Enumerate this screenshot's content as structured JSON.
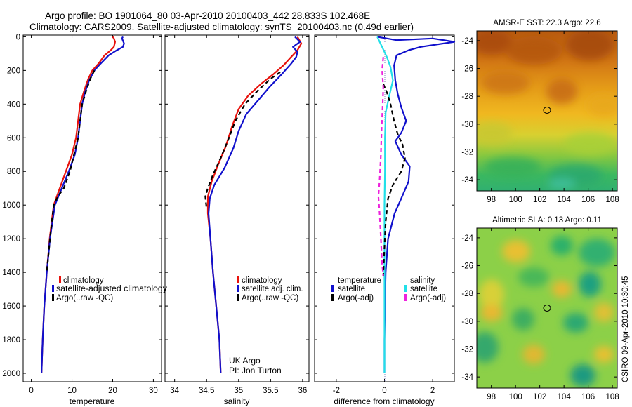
{
  "header": {
    "line1": "Argo profile: BO 1901064_80 03-Apr-2010 20100403_442 28.833S 102.468E",
    "line2": "Climatology: CARS2009. Satellite-adjusted climatology: synTS_20100403.nc (0.49d earlier)"
  },
  "side_stamp": "CSIRO 09-Apr-2010 10:30:45",
  "panels": {
    "temperature": {
      "xlabel": "temperature",
      "xticks": [
        "0",
        "10",
        "20",
        "30"
      ],
      "legend": [
        "climatology",
        "satellite-adjusted climatology",
        "Argo(..raw -QC)"
      ]
    },
    "salinity": {
      "xlabel": "salinity",
      "xticks": [
        "34",
        "34.5",
        "35",
        "35.5",
        "36"
      ],
      "legend": [
        "climatology",
        "satellite adj. clim.",
        "Argo(..raw -QC)"
      ],
      "note1": "UK Argo",
      "note2": "PI: Jon Turton"
    },
    "difference": {
      "xlabel": "difference from climatology",
      "xticks": [
        "-2",
        "0",
        "2"
      ],
      "legend_left_title": "temperature",
      "legend_right_title": "salinity",
      "legend_left": [
        "satellite",
        "Argo(-adj)"
      ],
      "legend_right": [
        "satellite",
        "Argo(-adj)"
      ]
    },
    "sst_map": {
      "title": "AMSR-E SST: 22.3 Argo: 22.6",
      "xticks": [
        "98",
        "100",
        "102",
        "104",
        "106",
        "108"
      ],
      "yticks": [
        "-24",
        "-26",
        "-28",
        "-30",
        "-32",
        "-34"
      ]
    },
    "sla_map": {
      "title": "Altimetric SLA: 0.13 Argo: 0.11",
      "xticks": [
        "98",
        "100",
        "102",
        "104",
        "106",
        "108"
      ],
      "yticks": [
        "-24",
        "-26",
        "-28",
        "-30",
        "-32",
        "-34"
      ]
    }
  },
  "yticks_depth": [
    "0",
    "200",
    "400",
    "600",
    "800",
    "1000",
    "1200",
    "1400",
    "1600",
    "1800",
    "2000"
  ],
  "colors": {
    "climatology": "#e8120c",
    "satellite_adj": "#1010cc",
    "argo": "#000000",
    "temp_satellite": "#1010cc",
    "sal_satellite": "#22e0e8",
    "sal_argo": "#ee22dd"
  },
  "chart_data": [
    {
      "type": "line",
      "panel": "temperature",
      "xlabel": "temperature",
      "xlim": [
        -2,
        32
      ],
      "ylim": [
        2050,
        -10
      ],
      "series": [
        {
          "name": "climatology",
          "color": "#e8120c",
          "dash": "none",
          "points": [
            [
              20,
              0
            ],
            [
              20.3,
              10
            ],
            [
              20.6,
              30
            ],
            [
              20.3,
              60
            ],
            [
              19.5,
              80
            ],
            [
              18,
              110
            ],
            [
              16.5,
              160
            ],
            [
              15,
              200
            ],
            [
              14,
              250
            ],
            [
              13,
              320
            ],
            [
              12,
              400
            ],
            [
              11.5,
              500
            ],
            [
              11,
              600
            ],
            [
              10,
              700
            ],
            [
              8.5,
              800
            ],
            [
              7,
              900
            ],
            [
              5.5,
              1000
            ],
            [
              4.5,
              1200
            ],
            [
              3.8,
              1400
            ],
            [
              3.2,
              1600
            ],
            [
              2.8,
              1800
            ],
            [
              2.5,
              2000
            ]
          ]
        },
        {
          "name": "satellite-adjusted climatology",
          "color": "#1010cc",
          "dash": "none",
          "points": [
            [
              22.5,
              0
            ],
            [
              22.3,
              10
            ],
            [
              22.8,
              40
            ],
            [
              22.5,
              60
            ],
            [
              21,
              80
            ],
            [
              19,
              110
            ],
            [
              17,
              160
            ],
            [
              15.5,
              200
            ],
            [
              14.2,
              260
            ],
            [
              13.2,
              330
            ],
            [
              12.5,
              400
            ],
            [
              12,
              500
            ],
            [
              11.5,
              600
            ],
            [
              10.7,
              700
            ],
            [
              9.2,
              800
            ],
            [
              7.5,
              900
            ],
            [
              5.8,
              1000
            ],
            [
              4.6,
              1200
            ],
            [
              3.8,
              1400
            ],
            [
              3.2,
              1600
            ],
            [
              2.8,
              1800
            ],
            [
              2.5,
              2000
            ]
          ]
        },
        {
          "name": "Argo(..raw -QC)",
          "color": "#000000",
          "dash": "6,4",
          "points": [
            [
              15.5,
              200
            ],
            [
              14.5,
              250
            ],
            [
              13.5,
              320
            ],
            [
              12.5,
              400
            ],
            [
              12,
              500
            ],
            [
              11.5,
              600
            ],
            [
              10.5,
              700
            ],
            [
              9.5,
              800
            ],
            [
              8,
              900
            ],
            [
              6.5,
              950
            ],
            [
              5.5,
              1000
            ],
            [
              4.6,
              1200
            ],
            [
              3.8,
              1400
            ]
          ]
        }
      ]
    },
    {
      "type": "line",
      "panel": "salinity",
      "xlabel": "salinity",
      "xlim": [
        33.85,
        36.1
      ],
      "ylim": [
        2050,
        -10
      ],
      "series": [
        {
          "name": "climatology",
          "color": "#e8120c",
          "dash": "none",
          "points": [
            [
              35.92,
              0
            ],
            [
              35.95,
              20
            ],
            [
              35.98,
              40
            ],
            [
              35.92,
              80
            ],
            [
              35.82,
              120
            ],
            [
              35.7,
              170
            ],
            [
              35.55,
              220
            ],
            [
              35.35,
              280
            ],
            [
              35.15,
              350
            ],
            [
              35.0,
              430
            ],
            [
              34.9,
              530
            ],
            [
              34.8,
              650
            ],
            [
              34.68,
              760
            ],
            [
              34.58,
              860
            ],
            [
              34.52,
              950
            ],
            [
              34.52,
              1050
            ],
            [
              34.56,
              1200
            ],
            [
              34.6,
              1400
            ],
            [
              34.65,
              1600
            ],
            [
              34.7,
              1800
            ],
            [
              34.72,
              2000
            ]
          ]
        },
        {
          "name": "satellite adj. clim.",
          "color": "#1010cc",
          "dash": "none",
          "points": [
            [
              35.88,
              0
            ],
            [
              35.96,
              30
            ],
            [
              35.85,
              60
            ],
            [
              35.92,
              90
            ],
            [
              35.9,
              120
            ],
            [
              35.82,
              160
            ],
            [
              35.68,
              220
            ],
            [
              35.48,
              300
            ],
            [
              35.3,
              380
            ],
            [
              35.12,
              460
            ],
            [
              35.0,
              560
            ],
            [
              34.92,
              660
            ],
            [
              34.78,
              780
            ],
            [
              34.62,
              880
            ],
            [
              34.55,
              960
            ],
            [
              34.53,
              1050
            ],
            [
              34.56,
              1200
            ],
            [
              34.6,
              1400
            ],
            [
              34.65,
              1600
            ],
            [
              34.7,
              1800
            ],
            [
              34.72,
              2000
            ]
          ]
        },
        {
          "name": "Argo(..raw -QC)",
          "color": "#000000",
          "dash": "6,4",
          "points": [
            [
              35.65,
              210
            ],
            [
              35.5,
              250
            ],
            [
              35.3,
              320
            ],
            [
              35.1,
              400
            ],
            [
              34.95,
              500
            ],
            [
              34.85,
              600
            ],
            [
              34.72,
              720
            ],
            [
              34.6,
              820
            ],
            [
              34.52,
              900
            ],
            [
              34.48,
              950
            ],
            [
              34.5,
              1020
            ]
          ]
        }
      ]
    },
    {
      "type": "line",
      "panel": "difference",
      "xlabel": "difference from climatology",
      "xlim": [
        -2.9,
        2.9
      ],
      "ylim": [
        2050,
        -10
      ],
      "series": [
        {
          "name": "temperature satellite",
          "color": "#1010cc",
          "dash": "none",
          "points": [
            [
              -0.3,
              0
            ],
            [
              0.5,
              20
            ],
            [
              2.0,
              10
            ],
            [
              2.9,
              30
            ],
            [
              1.5,
              60
            ],
            [
              1.0,
              80
            ],
            [
              0.5,
              110
            ],
            [
              0.4,
              170
            ],
            [
              0.45,
              260
            ],
            [
              0.55,
              340
            ],
            [
              0.7,
              420
            ],
            [
              0.9,
              500
            ],
            [
              0.7,
              570
            ],
            [
              0.45,
              620
            ],
            [
              0.7,
              700
            ],
            [
              1.05,
              770
            ],
            [
              1.0,
              860
            ],
            [
              0.7,
              960
            ],
            [
              0.42,
              1050
            ],
            [
              0.15,
              1200
            ],
            [
              0.05,
              1400
            ],
            [
              0.02,
              1600
            ],
            [
              0.0,
              1800
            ],
            [
              0.0,
              2000
            ]
          ]
        },
        {
          "name": "salinity satellite",
          "color": "#22e0e8",
          "dash": "none",
          "points": [
            [
              -0.3,
              0
            ],
            [
              -0.1,
              60
            ],
            [
              0.1,
              120
            ],
            [
              0.25,
              180
            ],
            [
              0.35,
              260
            ],
            [
              0.2,
              350
            ],
            [
              0.05,
              450
            ],
            [
              0.02,
              600
            ],
            [
              0.02,
              800
            ],
            [
              0.0,
              1000
            ],
            [
              0.0,
              1400
            ],
            [
              0.0,
              2000
            ]
          ]
        },
        {
          "name": "temperature Argo(-adj)",
          "color": "#000000",
          "dash": "6,4",
          "points": [
            [
              -0.05,
              280
            ],
            [
              0.1,
              330
            ],
            [
              0.25,
              400
            ],
            [
              0.4,
              500
            ],
            [
              0.55,
              580
            ],
            [
              0.75,
              640
            ],
            [
              0.85,
              720
            ],
            [
              0.7,
              800
            ],
            [
              0.35,
              880
            ],
            [
              0.15,
              960
            ],
            [
              0.05,
              1100
            ],
            [
              0.0,
              1250
            ],
            [
              -0.05,
              1420
            ]
          ]
        },
        {
          "name": "salinity Argo(-adj)",
          "color": "#ee22dd",
          "dash": "6,4",
          "points": [
            [
              -0.05,
              120
            ],
            [
              -0.1,
              200
            ],
            [
              -0.05,
              300
            ],
            [
              -0.08,
              420
            ],
            [
              -0.12,
              550
            ],
            [
              -0.15,
              700
            ],
            [
              -0.2,
              850
            ],
            [
              -0.25,
              950
            ],
            [
              -0.2,
              1050
            ],
            [
              -0.15,
              1200
            ],
            [
              -0.1,
              1350
            ],
            [
              -0.05,
              1420
            ]
          ]
        }
      ]
    }
  ]
}
